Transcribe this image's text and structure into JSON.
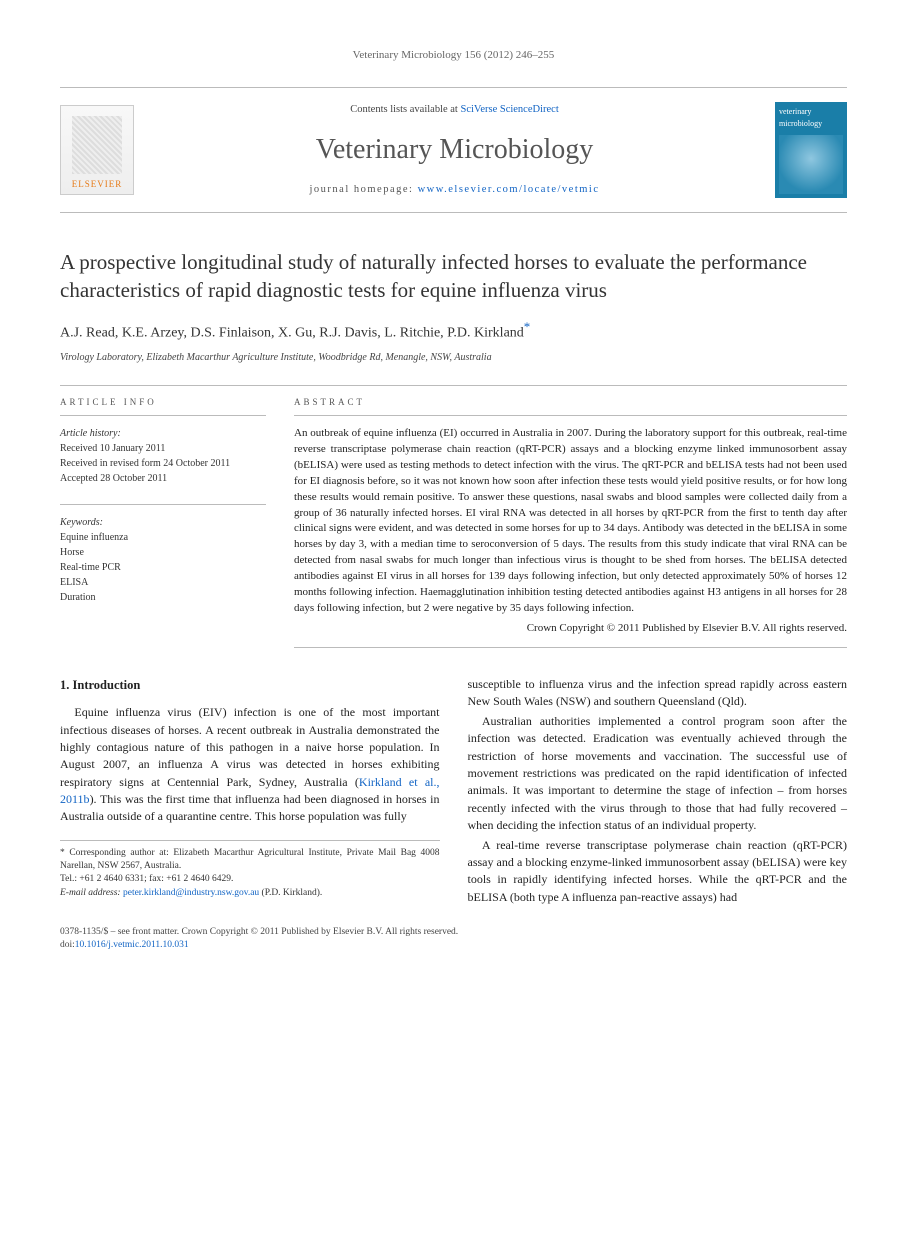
{
  "running_head": "Veterinary Microbiology 156 (2012) 246–255",
  "masthead": {
    "contents_prefix": "Contents lists available at ",
    "contents_link": "SciVerse ScienceDirect",
    "journal_title": "Veterinary Microbiology",
    "homepage_prefix": "journal homepage: ",
    "homepage_url": "www.elsevier.com/locate/vetmic",
    "publisher_label": "ELSEVIER",
    "cover_label": "veterinary microbiology"
  },
  "article": {
    "title": "A prospective longitudinal study of naturally infected horses to evaluate the performance characteristics of rapid diagnostic tests for equine influenza virus",
    "authors": "A.J. Read, K.E. Arzey, D.S. Finlaison, X. Gu, R.J. Davis, L. Ritchie, P.D. Kirkland",
    "corr_mark": "*",
    "affiliation": "Virology Laboratory, Elizabeth Macarthur Agriculture Institute, Woodbridge Rd, Menangle, NSW, Australia"
  },
  "info": {
    "section_label": "ARTICLE INFO",
    "history_head": "Article history:",
    "received": "Received 10 January 2011",
    "revised": "Received in revised form 24 October 2011",
    "accepted": "Accepted 28 October 2011",
    "kw_head": "Keywords:",
    "keywords": [
      "Equine influenza",
      "Horse",
      "Real-time PCR",
      "ELISA",
      "Duration"
    ]
  },
  "abstract": {
    "section_label": "ABSTRACT",
    "text": "An outbreak of equine influenza (EI) occurred in Australia in 2007. During the laboratory support for this outbreak, real-time reverse transcriptase polymerase chain reaction (qRT-PCR) assays and a blocking enzyme linked immunosorbent assay (bELISA) were used as testing methods to detect infection with the virus. The qRT-PCR and bELISA tests had not been used for EI diagnosis before, so it was not known how soon after infection these tests would yield positive results, or for how long these results would remain positive. To answer these questions, nasal swabs and blood samples were collected daily from a group of 36 naturally infected horses. EI viral RNA was detected in all horses by qRT-PCR from the first to tenth day after clinical signs were evident, and was detected in some horses for up to 34 days. Antibody was detected in the bELISA in some horses by day 3, with a median time to seroconversion of 5 days. The results from this study indicate that viral RNA can be detected from nasal swabs for much longer than infectious virus is thought to be shed from horses. The bELISA detected antibodies against EI virus in all horses for 139 days following infection, but only detected approximately 50% of horses 12 months following infection. Haemagglutination inhibition testing detected antibodies against H3 antigens in all horses for 28 days following infection, but 2 were negative by 35 days following infection.",
    "copyright": "Crown Copyright © 2011 Published by Elsevier B.V. All rights reserved."
  },
  "body": {
    "h_intro": "1. Introduction",
    "p1a": "Equine influenza virus (EIV) infection is one of the most important infectious diseases of horses. A recent outbreak in Australia demonstrated the highly contagious nature of this pathogen in a naive horse population. In August 2007, an influenza A virus was detected in horses exhibiting respiratory signs at Centennial Park, Sydney, Australia (",
    "p1_cite": "Kirkland et al., 2011b",
    "p1b": "). This was the first time that influenza had been diagnosed in horses in Australia outside of a quarantine centre. This horse population was fully",
    "p2": "susceptible to influenza virus and the infection spread rapidly across eastern New South Wales (NSW) and southern Queensland (Qld).",
    "p3": "Australian authorities implemented a control program soon after the infection was detected. Eradication was eventually achieved through the restriction of horse movements and vaccination. The successful use of movement restrictions was predicated on the rapid identification of infected animals. It was important to determine the stage of infection – from horses recently infected with the virus through to those that had fully recovered – when deciding the infection status of an individual property.",
    "p4": "A real-time reverse transcriptase polymerase chain reaction (qRT-PCR) assay and a blocking enzyme-linked immunosorbent assay (bELISA) were key tools in rapidly identifying infected horses. While the qRT-PCR and the bELISA (both type A influenza pan-reactive assays) had"
  },
  "corr": {
    "label": "* Corresponding author at: Elizabeth Macarthur Agricultural Institute, Private Mail Bag 4008 Narellan, NSW 2567, Australia.",
    "tel": "Tel.: +61 2 4640 6331; fax: +61 2 4640 6429.",
    "email_label": "E-mail address: ",
    "email": "peter.kirkland@industry.nsw.gov.au",
    "email_suffix": " (P.D. Kirkland)."
  },
  "footer": {
    "line1": "0378-1135/$ – see front matter. Crown Copyright © 2011 Published by Elsevier B.V. All rights reserved.",
    "doi_label": "doi:",
    "doi": "10.1016/j.vetmic.2011.10.031"
  },
  "colors": {
    "link": "#1264c4",
    "elsevier_orange": "#e67a17",
    "cover_bg": "#1a7ea8",
    "rule": "#bbbbbb",
    "text": "#2a2a2a"
  },
  "typography": {
    "body_pt": 12,
    "abstract_pt": 11,
    "title_pt": 21,
    "journal_title_pt": 28,
    "small_pt": 10
  }
}
